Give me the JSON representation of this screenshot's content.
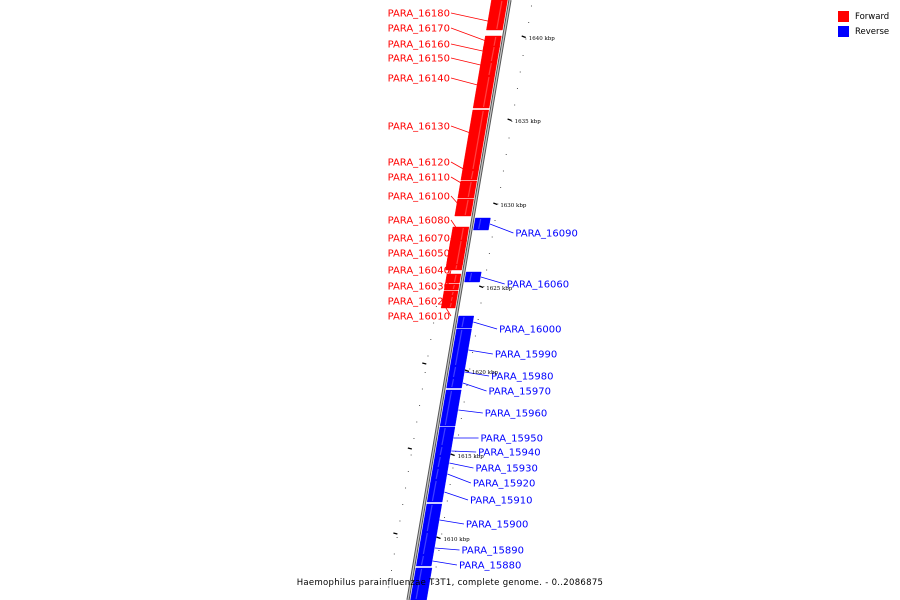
{
  "title": "Haemophilus parainfluenzae T3T1, complete genome. - 0..2086875",
  "legend": [
    {
      "label": "Forward",
      "color": "#ff0000"
    },
    {
      "label": "Reverse",
      "color": "#0000ff"
    }
  ],
  "kbp_ticks": [
    "1640 kbp",
    "1635 kbp",
    "1630 kbp",
    "1625 kbp",
    "1620 kbp",
    "1615 kbp",
    "1610 kbp"
  ],
  "forward_genes": [
    "PARA_16180",
    "PARA_16170",
    "PARA_16160",
    "PARA_16150",
    "PARA_16140",
    "PARA_16130",
    "PARA_16120",
    "PARA_16110",
    "PARA_16100",
    "PARA_16080",
    "PARA_16070",
    "PARA_16050",
    "PARA_16040",
    "PARA_16030",
    "PARA_16020",
    "PARA_16010"
  ],
  "reverse_genes": [
    "PARA_16090",
    "PARA_16060",
    "PARA_16000",
    "PARA_15990",
    "PARA_15980",
    "PARA_15970",
    "PARA_15960",
    "PARA_15950",
    "PARA_15940",
    "PARA_15930",
    "PARA_15920",
    "PARA_15910",
    "PARA_15900",
    "PARA_15890",
    "PARA_15880"
  ],
  "colors": {
    "forward": "#ff0000",
    "reverse": "#0000ff",
    "backbone": "#888888"
  }
}
